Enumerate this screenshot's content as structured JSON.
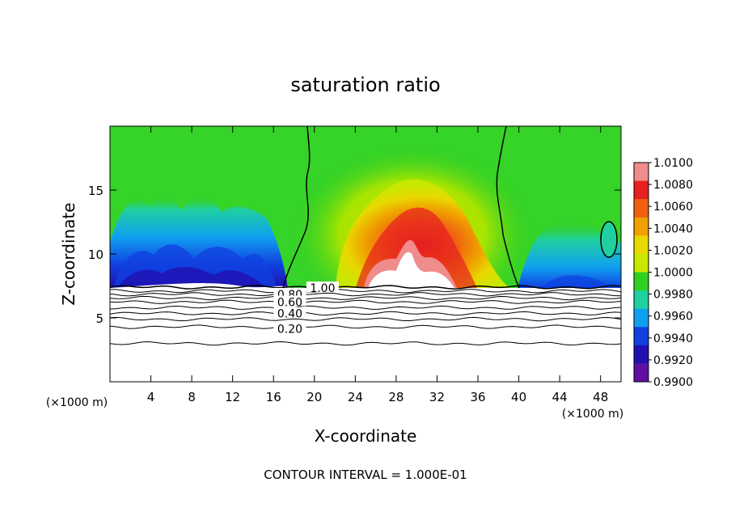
{
  "chart_data": {
    "type": "contour",
    "title": "saturation ratio",
    "xlabel": "X-coordinate",
    "ylabel": "Z-coordinate",
    "x_unit_left": "(×1000 m)",
    "x_unit_right": "(×1000 m)",
    "footer": "CONTOUR INTERVAL = 1.000E-01",
    "xlim": [
      0,
      50
    ],
    "ylim": [
      0,
      20
    ],
    "x_ticks": [
      "4",
      "8",
      "12",
      "16",
      "20",
      "24",
      "28",
      "32",
      "36",
      "40",
      "44",
      "48"
    ],
    "y_ticks": [
      "5",
      "10",
      "15"
    ],
    "x_tick_values": [
      4,
      8,
      12,
      16,
      20,
      24,
      28,
      32,
      36,
      40,
      44,
      48
    ],
    "y_tick_values": [
      5,
      10,
      15
    ],
    "colorbar": {
      "min": 0.99,
      "max": 1.01,
      "labels": [
        "1.0100",
        "1.0080",
        "1.0060",
        "1.0040",
        "1.0020",
        "1.0000",
        "0.9980",
        "0.9960",
        "0.9940",
        "0.9920",
        "0.9900"
      ],
      "colors": [
        "#F08C8C",
        "#E62020",
        "#F06010",
        "#F0A000",
        "#E8D800",
        "#C8E800",
        "#30D020",
        "#20D0A0",
        "#10A0F0",
        "#1040E0",
        "#2010B0",
        "#6010A0"
      ]
    },
    "contour_labels": [
      {
        "text": "1.00",
        "x": 20.8,
        "z": 7.4
      },
      {
        "text": "0.80",
        "x": 17.6,
        "z": 6.9
      },
      {
        "text": "0.60",
        "x": 17.6,
        "z": 6.3
      },
      {
        "text": "0.40",
        "x": 17.6,
        "z": 5.4
      },
      {
        "text": "0.20",
        "x": 17.6,
        "z": 4.2
      }
    ],
    "contour_levels": [
      {
        "level": 1.0,
        "z": 7.4
      },
      {
        "level": 0.9,
        "z": 7.1
      },
      {
        "level": 0.8,
        "z": 6.85
      },
      {
        "level": 0.7,
        "z": 6.55
      },
      {
        "level": 0.6,
        "z": 6.25
      },
      {
        "level": 0.5,
        "z": 5.8
      },
      {
        "level": 0.4,
        "z": 5.35
      },
      {
        "level": 0.3,
        "z": 4.9
      },
      {
        "level": 0.2,
        "z": 4.3
      },
      {
        "level": 0.1,
        "z": 3.0
      }
    ]
  }
}
